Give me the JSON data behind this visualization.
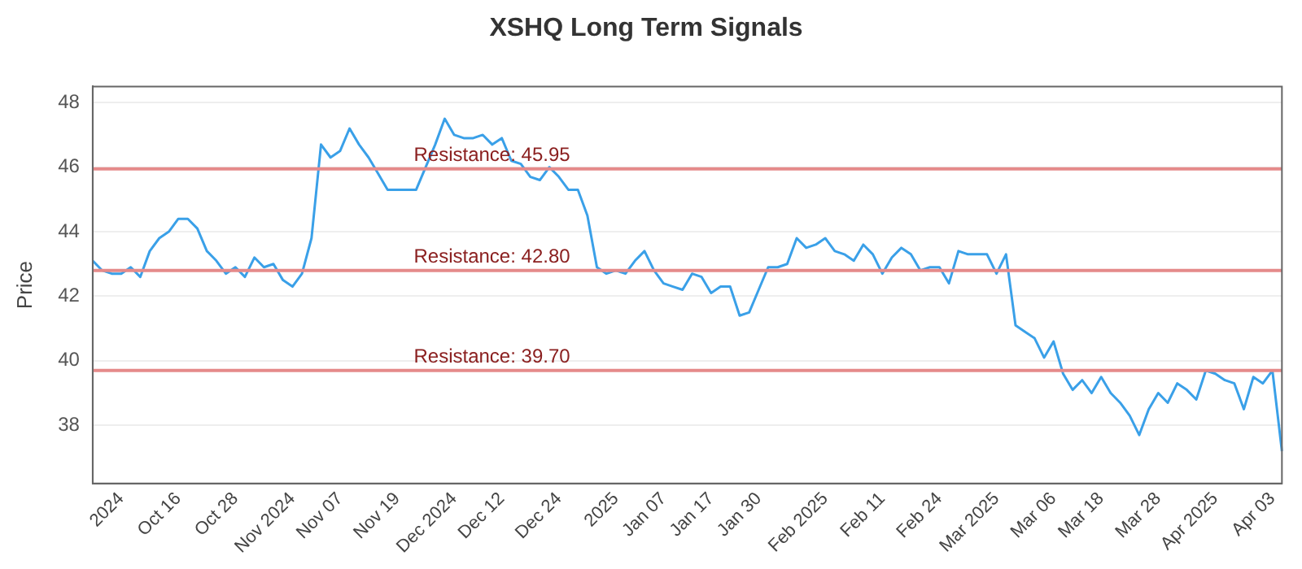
{
  "chart_data": {
    "type": "line",
    "title": "XSHQ Long Term Signals",
    "ylabel": "Price",
    "categories": [
      null,
      null,
      null,
      "2024",
      null,
      null,
      null,
      null,
      null,
      "Oct 16",
      null,
      null,
      null,
      null,
      null,
      "Oct 28",
      null,
      null,
      null,
      null,
      null,
      "Nov 2024",
      null,
      null,
      null,
      null,
      "Nov 07",
      null,
      null,
      null,
      null,
      null,
      "Nov 19",
      null,
      null,
      null,
      null,
      null,
      "Dec 2024",
      null,
      null,
      null,
      null,
      "Dec 12",
      null,
      null,
      null,
      null,
      null,
      "Dec 24",
      null,
      null,
      null,
      null,
      null,
      "2025",
      null,
      null,
      null,
      null,
      "Jan 07",
      null,
      null,
      null,
      null,
      "Jan 17",
      null,
      null,
      null,
      null,
      "Jan 30",
      null,
      null,
      null,
      null,
      null,
      null,
      "Feb 2025",
      null,
      null,
      null,
      null,
      null,
      "Feb 11",
      null,
      null,
      null,
      null,
      null,
      "Feb 24",
      null,
      null,
      null,
      null,
      null,
      "Mar 2025",
      null,
      null,
      null,
      null,
      null,
      "Mar 06",
      null,
      null,
      null,
      null,
      "Mar 18",
      null,
      null,
      null,
      null,
      null,
      "Mar 28",
      null,
      null,
      null,
      null,
      null,
      "Apr 2025",
      null,
      null,
      null,
      null,
      null,
      "Apr 03",
      null
    ],
    "series": [
      {
        "color": "#3aa0e8",
        "values": [
          43.1,
          42.8,
          42.7,
          42.7,
          42.9,
          42.6,
          43.4,
          43.8,
          44.0,
          44.4,
          44.4,
          44.1,
          43.4,
          43.1,
          42.7,
          42.9,
          42.6,
          43.2,
          42.9,
          43.0,
          42.5,
          42.3,
          42.7,
          43.8,
          46.7,
          46.3,
          46.5,
          47.2,
          46.7,
          46.3,
          45.8,
          45.3,
          45.3,
          45.3,
          45.3,
          46.0,
          46.7,
          47.5,
          47.0,
          46.9,
          46.9,
          47.0,
          46.7,
          46.9,
          46.2,
          46.1,
          45.7,
          45.6,
          46.0,
          45.7,
          45.3,
          45.3,
          44.5,
          42.9,
          42.7,
          42.8,
          42.7,
          43.1,
          43.4,
          42.8,
          42.4,
          42.3,
          42.2,
          42.7,
          42.6,
          42.1,
          42.3,
          42.3,
          41.4,
          41.5,
          42.2,
          42.9,
          42.9,
          43.0,
          43.8,
          43.5,
          43.6,
          43.8,
          43.4,
          43.3,
          43.1,
          43.6,
          43.3,
          42.7,
          43.2,
          43.5,
          43.3,
          42.8,
          42.9,
          42.9,
          42.4,
          43.4,
          43.3,
          43.3,
          43.3,
          42.7,
          43.3,
          41.1,
          40.9,
          40.7,
          40.1,
          40.6,
          39.6,
          39.1,
          39.4,
          39.0,
          39.5,
          39.0,
          38.7,
          38.3,
          37.7,
          38.5,
          39.0,
          38.7,
          39.3,
          39.1,
          38.8,
          39.7,
          39.6,
          39.4,
          39.3,
          38.5,
          39.5,
          39.3,
          39.7,
          37.2
        ]
      }
    ],
    "ylim": [
      36.2,
      48.5
    ],
    "yticks": [
      38,
      40,
      42,
      44,
      46,
      48
    ],
    "ref_lines": [
      {
        "axis": "y",
        "value": 45.95,
        "label": "Resistance: 45.95",
        "color": "#e58a8a"
      },
      {
        "axis": "y",
        "value": 42.8,
        "label": "Resistance: 42.80",
        "color": "#e58a8a"
      },
      {
        "axis": "y",
        "value": 39.7,
        "label": "Resistance: 39.70",
        "color": "#e58a8a"
      }
    ],
    "grid": "y",
    "legend": false,
    "marker": "none",
    "line_style": "solid"
  }
}
